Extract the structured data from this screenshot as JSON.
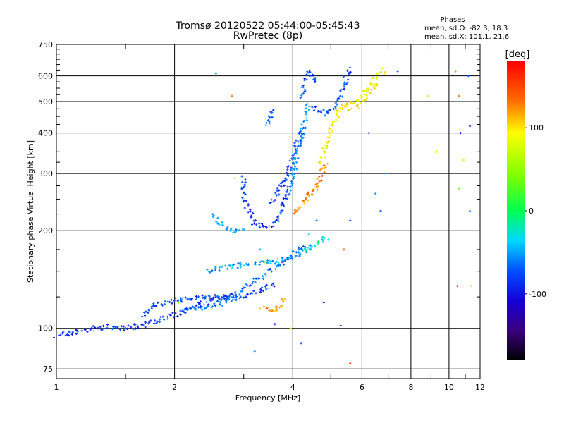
{
  "chart_data": {
    "type": "scatter",
    "title": "Tromsø 20120522 05:44:00-05:45:43",
    "subtitle": "RwPretec (8p)",
    "xlabel": "Frequency [MHz]",
    "ylabel": "Stationary phase Virtual Height [km]",
    "x_scale": "log",
    "y_scale": "log",
    "xlim": [
      1,
      12
    ],
    "ylim": [
      70,
      750
    ],
    "x_ticks": [
      1,
      2,
      4,
      6,
      8,
      10,
      12
    ],
    "x_minor_ticks": [
      1.5,
      3,
      5,
      7,
      9,
      11
    ],
    "y_ticks": [
      75,
      100,
      200,
      300,
      400,
      500,
      600,
      750
    ],
    "y_minor_ticks": [
      125,
      150,
      175,
      225,
      250,
      275,
      325,
      350,
      375,
      425,
      450,
      475,
      525,
      550,
      575,
      625,
      650,
      675,
      700,
      725
    ],
    "grid": true,
    "phases_box": {
      "heading": "Phases",
      "line1": "mean, sd,O: -82.3, 18.3",
      "line2": "mean, sd,X: 101.1, 21.6"
    },
    "colorbar": {
      "label": "[deg]",
      "range": [
        -180,
        180
      ],
      "ticks": [
        100,
        0,
        -100
      ],
      "colormap": "rainbow-with-black"
    },
    "series": [
      {
        "segments": [
          {
            "x": [
              1.0,
              1.08,
              1.2,
              1.35,
              1.5,
              1.7,
              1.9,
              2.1,
              2.4,
              2.7,
              2.85
            ],
            "y": [
              95,
              97,
              99,
              101,
              100,
              103,
              108,
              112,
              120,
              125,
              127
            ],
            "phase": -95
          },
          {
            "x": [
              1.65,
              1.8,
              2.0,
              2.2,
              2.5,
              2.8,
              3.0,
              3.3,
              3.6
            ],
            "y": [
              110,
              118,
              122,
              124,
              125,
              124,
              125,
              130,
              137
            ],
            "phase": -90
          },
          {
            "x": [
              2.1,
              2.4,
              2.7,
              3.0,
              3.2,
              3.5,
              3.8,
              4.0,
              4.3
            ],
            "y": [
              115,
              116,
              120,
              132,
              140,
              150,
              160,
              170,
              182
            ],
            "phase": -75
          },
          {
            "x": [
              2.4,
              2.7,
              3.1,
              3.5,
              3.9,
              4.2,
              4.5
            ],
            "y": [
              150,
              154,
              158,
              160,
              163,
              170,
              180
            ],
            "phase": -55
          },
          {
            "x": [
              3.4,
              3.55,
              3.7,
              3.8
            ],
            "y": [
              115,
              112,
              118,
              125
            ],
            "phase": 140
          },
          {
            "x": [
              2.5,
              2.6,
              2.7,
              2.8,
              2.9,
              3.0
            ],
            "y": [
              225,
              212,
              205,
              200,
              202,
              205
            ],
            "phase": -55
          },
          {
            "x": [
              3.0,
              3.0,
              3.1,
              3.2,
              3.4,
              3.6,
              3.75,
              3.9
            ],
            "y": [
              290,
              250,
              230,
              210,
              205,
              210,
              230,
              270
            ],
            "phase": -100
          },
          {
            "x": [
              3.5,
              3.6,
              3.75,
              3.9,
              4.0,
              4.1,
              4.3
            ],
            "y": [
              240,
              255,
              275,
              300,
              330,
              375,
              420
            ],
            "phase": -95
          },
          {
            "x": [
              3.9,
              4.0,
              4.1,
              4.2,
              4.3,
              4.4
            ],
            "y": [
              260,
              290,
              340,
              390,
              440,
              500
            ],
            "phase": -60
          },
          {
            "x": [
              4.2,
              4.3,
              4.4,
              4.5,
              4.6
            ],
            "y": [
              520,
              580,
              620,
              600,
              560
            ],
            "phase": -85
          },
          {
            "x": [
              4.5,
              4.7,
              4.9,
              5.1,
              5.3,
              5.5,
              5.6
            ],
            "y": [
              480,
              470,
              460,
              480,
              530,
              600,
              640
            ],
            "phase": -85
          },
          {
            "x": [
              3.4,
              3.5,
              3.6
            ],
            "y": [
              420,
              440,
              470
            ],
            "phase": -90
          },
          {
            "x": [
              4.0,
              4.1,
              4.2,
              4.3,
              4.4,
              4.5,
              4.6,
              4.7,
              4.8,
              4.85
            ],
            "y": [
              225,
              232,
              240,
              250,
              258,
              262,
              270,
              290,
              310,
              330
            ],
            "phase": 140
          },
          {
            "x": [
              4.7,
              4.8,
              4.9,
              5.0,
              5.1,
              5.2,
              5.3,
              5.4,
              5.5,
              5.6
            ],
            "y": [
              320,
              350,
              380,
              410,
              440,
              460,
              470,
              480,
              490,
              500
            ],
            "phase": 105
          },
          {
            "x": [
              5.5,
              5.7,
              5.9,
              6.1,
              6.3,
              6.5,
              6.7,
              6.9
            ],
            "y": [
              470,
              490,
              510,
              540,
              560,
              590,
              610,
              630
            ],
            "phase": 95
          },
          {
            "x": [
              5.8,
              6.0,
              6.2,
              6.4,
              6.6
            ],
            "y": [
              480,
              500,
              520,
              550,
              570
            ],
            "phase": 110
          },
          {
            "x": [
              4.3,
              4.5,
              4.7,
              4.9
            ],
            "y": [
              175,
              180,
              185,
              192
            ],
            "phase": -20
          }
        ],
        "outliers": [
          {
            "x": 2.55,
            "y": 610,
            "phase": -60
          },
          {
            "x": 2.8,
            "y": 520,
            "phase": 150
          },
          {
            "x": 2.85,
            "y": 290,
            "phase": 120
          },
          {
            "x": 3.3,
            "y": 115,
            "phase": 120
          },
          {
            "x": 3.3,
            "y": 175,
            "phase": -40
          },
          {
            "x": 3.4,
            "y": 160,
            "phase": 30
          },
          {
            "x": 3.2,
            "y": 85,
            "phase": -60
          },
          {
            "x": 4.2,
            "y": 90,
            "phase": -100
          },
          {
            "x": 5.6,
            "y": 78,
            "phase": 160
          },
          {
            "x": 5.4,
            "y": 175,
            "phase": 150
          },
          {
            "x": 5.6,
            "y": 215,
            "phase": -80
          },
          {
            "x": 6.25,
            "y": 400,
            "phase": -100
          },
          {
            "x": 6.5,
            "y": 260,
            "phase": -60
          },
          {
            "x": 6.7,
            "y": 230,
            "phase": -90
          },
          {
            "x": 6.9,
            "y": 300,
            "phase": -70
          },
          {
            "x": 7.4,
            "y": 620,
            "phase": -95
          },
          {
            "x": 8.8,
            "y": 520,
            "phase": 120
          },
          {
            "x": 9.3,
            "y": 350,
            "phase": 60
          },
          {
            "x": 10.4,
            "y": 620,
            "phase": 140
          },
          {
            "x": 10.6,
            "y": 520,
            "phase": 150
          },
          {
            "x": 10.7,
            "y": 400,
            "phase": -100
          },
          {
            "x": 10.9,
            "y": 330,
            "phase": 110
          },
          {
            "x": 10.6,
            "y": 270,
            "phase": 30
          },
          {
            "x": 10.5,
            "y": 135,
            "phase": 160
          },
          {
            "x": 11.2,
            "y": 600,
            "phase": -90
          },
          {
            "x": 11.3,
            "y": 420,
            "phase": -110
          },
          {
            "x": 11.3,
            "y": 230,
            "phase": -70
          },
          {
            "x": 11.4,
            "y": 135,
            "phase": 100
          },
          {
            "x": 2.05,
            "y": 120,
            "phase": 60
          },
          {
            "x": 3.6,
            "y": 103,
            "phase": -100
          },
          {
            "x": 4.8,
            "y": 120,
            "phase": -100
          },
          {
            "x": 5.3,
            "y": 102,
            "phase": -90
          },
          {
            "x": 4.6,
            "y": 215,
            "phase": -60
          },
          {
            "x": 4.4,
            "y": 195,
            "phase": -40
          },
          {
            "x": 3.95,
            "y": 100,
            "phase": 80
          }
        ]
      }
    ]
  }
}
